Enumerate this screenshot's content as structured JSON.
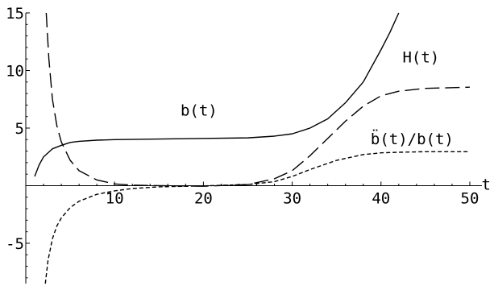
{
  "chart_data": {
    "type": "line",
    "title": "",
    "xlabel": "t",
    "ylabel": "",
    "xlim": [
      0,
      51
    ],
    "ylim": [
      -8.5,
      15
    ],
    "xticks": [
      10,
      20,
      30,
      40,
      50
    ],
    "yticks": [
      -5,
      5,
      10,
      15
    ],
    "xtick_labels": [
      "10",
      "20",
      "30",
      "40",
      "50"
    ],
    "ytick_labels": [
      "-5",
      "5",
      "10",
      "15"
    ],
    "grid": false,
    "series": [
      {
        "name": "b(t)",
        "style": "solid",
        "x": [
          1,
          1.5,
          2,
          3,
          4,
          5,
          6,
          8,
          10,
          15,
          20,
          25,
          28,
          30,
          32,
          34,
          36,
          38,
          40,
          41,
          42
        ],
        "y": [
          0.8,
          1.8,
          2.5,
          3.2,
          3.5,
          3.75,
          3.85,
          3.95,
          4.0,
          4.05,
          4.1,
          4.15,
          4.3,
          4.5,
          5.0,
          5.8,
          7.2,
          9.0,
          11.8,
          13.3,
          15
        ]
      },
      {
        "name": "H(t)",
        "style": "dashed",
        "x": [
          2.3,
          2.6,
          3,
          3.5,
          4,
          5,
          6,
          8,
          10,
          12,
          15,
          20,
          25,
          28,
          30,
          32,
          34,
          36,
          38,
          40,
          42,
          45,
          50
        ],
        "y": [
          15,
          11,
          7.5,
          5.2,
          3.8,
          2.2,
          1.3,
          0.5,
          0.15,
          0.05,
          0.0,
          -0.05,
          0.1,
          0.6,
          1.3,
          2.6,
          4.1,
          5.6,
          6.9,
          7.8,
          8.2,
          8.45,
          8.55
        ]
      },
      {
        "name": "b̈(t)/b(t)",
        "style": "dotted",
        "x": [
          2.2,
          2.5,
          3,
          3.5,
          4,
          5,
          6,
          8,
          10,
          12,
          15,
          20,
          25,
          28,
          30,
          32,
          35,
          38,
          40,
          42,
          45,
          50
        ],
        "y": [
          -8.5,
          -6.5,
          -4.6,
          -3.5,
          -2.8,
          -1.9,
          -1.35,
          -0.75,
          -0.45,
          -0.25,
          -0.1,
          -0.02,
          0.1,
          0.35,
          0.8,
          1.4,
          2.2,
          2.7,
          2.85,
          2.9,
          2.95,
          2.95
        ]
      }
    ],
    "annotations": [
      {
        "text": "b(t)",
        "x": 19.5,
        "y": 6.1
      },
      {
        "text": "H(t)",
        "x": 44.5,
        "y": 10.7
      },
      {
        "text": "b̈(t)/b(t)",
        "x": 43.5,
        "y": 3.6
      }
    ]
  }
}
